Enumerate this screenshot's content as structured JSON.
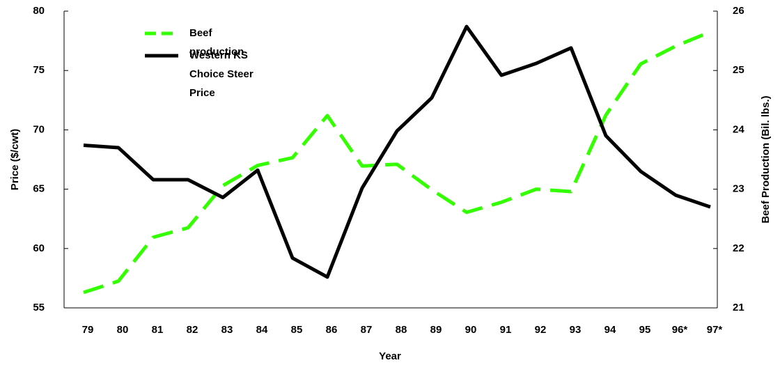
{
  "chart_data": {
    "type": "line",
    "x_label": "Year",
    "y_label": "Price ($/cwt)",
    "y2_label": "Beef Production (Bil. lbs.)",
    "categories": [
      "79",
      "80",
      "81",
      "82",
      "83",
      "84",
      "85",
      "86",
      "87",
      "88",
      "89",
      "90",
      "91",
      "92",
      "93",
      "94",
      "95",
      "96*",
      "97*"
    ],
    "series": [
      {
        "name": "Beef production",
        "color": "#33ff00",
        "axis": "y2",
        "dashed": true,
        "values": [
          21.26,
          21.45,
          22.19,
          22.35,
          23.06,
          23.4,
          23.53,
          24.24,
          23.39,
          23.42,
          22.99,
          22.61,
          22.78,
          23.0,
          22.96,
          24.25,
          25.11,
          25.41,
          25.65
        ]
      },
      {
        "name": "Western KS Choice Steer Price",
        "color": "#000000",
        "values": [
          68.7,
          68.5,
          65.8,
          65.8,
          64.3,
          66.6,
          59.2,
          57.6,
          65.1,
          69.9,
          72.7,
          78.7,
          74.6,
          75.6,
          76.9,
          69.5,
          66.5,
          64.5,
          63.5
        ]
      }
    ],
    "ylim": [
      55,
      80
    ],
    "yticks": [
      55,
      60,
      65,
      70,
      75,
      80
    ],
    "y2lim": [
      21,
      26
    ],
    "y2ticks": [
      21,
      22,
      23,
      24,
      25,
      26
    ]
  }
}
